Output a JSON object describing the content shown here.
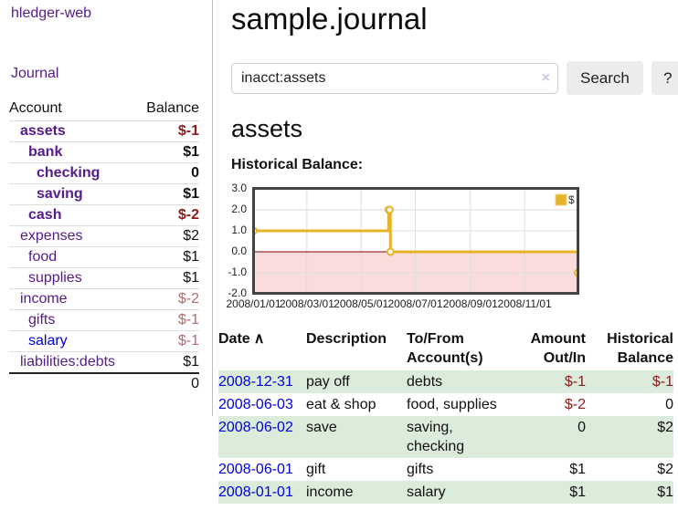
{
  "app": {
    "brand": "hledger-web",
    "nav_journal": "Journal"
  },
  "sidebar": {
    "headers": {
      "account": "Account",
      "balance": "Balance"
    },
    "rows": [
      {
        "account": "assets",
        "balance": "$-1",
        "level": 1,
        "bold": true,
        "neg": "strong",
        "link": "purple"
      },
      {
        "account": "bank",
        "balance": "$1",
        "level": 2,
        "bold": true,
        "neg": "",
        "link": "purple"
      },
      {
        "account": "checking",
        "balance": "0",
        "level": 3,
        "bold": true,
        "neg": "",
        "link": "purple"
      },
      {
        "account": "saving",
        "balance": "$1",
        "level": 3,
        "bold": true,
        "neg": "",
        "link": "purple"
      },
      {
        "account": "cash",
        "balance": "$-2",
        "level": 2,
        "bold": true,
        "neg": "strong",
        "link": "purple"
      },
      {
        "account": "expenses",
        "balance": "$2",
        "level": 1,
        "bold": false,
        "neg": "",
        "link": "purple"
      },
      {
        "account": "food",
        "balance": "$1",
        "level": 2,
        "bold": false,
        "neg": "",
        "link": "purple"
      },
      {
        "account": "supplies",
        "balance": "$1",
        "level": 2,
        "bold": false,
        "neg": "",
        "link": "purple"
      },
      {
        "account": "income",
        "balance": "$-2",
        "level": 1,
        "bold": false,
        "neg": "soft",
        "link": "purple"
      },
      {
        "account": "gifts",
        "balance": "$-1",
        "level": 2,
        "bold": false,
        "neg": "soft",
        "link": "purple"
      },
      {
        "account": "salary",
        "balance": "$-1",
        "level": 2,
        "bold": false,
        "neg": "soft",
        "link": "blue"
      },
      {
        "account": "liabilities:debts",
        "balance": "$1",
        "level": 1,
        "bold": false,
        "neg": "",
        "link": "purple"
      }
    ],
    "total": "0"
  },
  "main": {
    "title": "sample.journal",
    "search": {
      "value": "inacct:assets",
      "clear_icon": "×",
      "button_label": "Search",
      "help_label": "?"
    },
    "account_heading": "assets",
    "register": {
      "headers": [
        "Date",
        "Description",
        "To/From Account(s)",
        "Amount Out/In",
        "Historical Balance"
      ],
      "sort_icon": "∧",
      "rows": [
        {
          "date": "2008-12-31",
          "description": "pay off",
          "accounts": "debts",
          "amount": "$-1",
          "balance": "$-1",
          "amount_neg": true,
          "balance_neg": true,
          "striped": true
        },
        {
          "date": "2008-06-03",
          "description": "eat & shop",
          "accounts": "food, supplies",
          "amount": "$-2",
          "balance": "0",
          "amount_neg": true,
          "balance_neg": false,
          "striped": false
        },
        {
          "date": "2008-06-02",
          "description": "save",
          "accounts": "saving, checking",
          "amount": "0",
          "balance": "$2",
          "amount_neg": false,
          "balance_neg": false,
          "striped": true
        },
        {
          "date": "2008-06-01",
          "description": "gift",
          "accounts": "gifts",
          "amount": "$1",
          "balance": "$2",
          "amount_neg": false,
          "balance_neg": false,
          "striped": false
        },
        {
          "date": "2008-01-01",
          "description": "income",
          "accounts": "salary",
          "amount": "$1",
          "balance": "$1",
          "amount_neg": false,
          "balance_neg": false,
          "striped": true
        }
      ]
    }
  },
  "chart_data": {
    "type": "line",
    "step": true,
    "title": "Historical Balance:",
    "series": [
      {
        "name": "$",
        "x": [
          "2008-01-01",
          "2008-06-01",
          "2008-06-02",
          "2008-06-03",
          "2008-12-31"
        ],
        "y": [
          1,
          2,
          2,
          0,
          -1
        ]
      }
    ],
    "xlim": [
      "2008-01-01",
      "2008-12-31"
    ],
    "ylim": [
      -2,
      3
    ],
    "x_ticks": [
      "2008/01/01",
      "2008/03/01",
      "2008/05/01",
      "2008/07/01",
      "2008/09/01",
      "2008/11/01"
    ],
    "y_ticks": [
      "3.0",
      "2.0",
      "1.0",
      "0.0",
      "-1.0",
      "-2.0"
    ],
    "grid": true,
    "legend": {
      "label": "$",
      "position": "top-right"
    },
    "colors": {
      "line": "#e7b32a",
      "marker_fill": "#fffdf2",
      "negative_region": "#fbdcdc",
      "zero_line": "#7a0000",
      "grid": "#dddddd",
      "border": "#444444"
    }
  },
  "colors": {
    "link_visited": "#551a8b",
    "link_unvisited": "#0000dd",
    "negative_strong": "#8e1a1a",
    "negative_soft": "#b56a6e",
    "row_stripe": "#dcecdb",
    "button_bg": "#ececec"
  }
}
